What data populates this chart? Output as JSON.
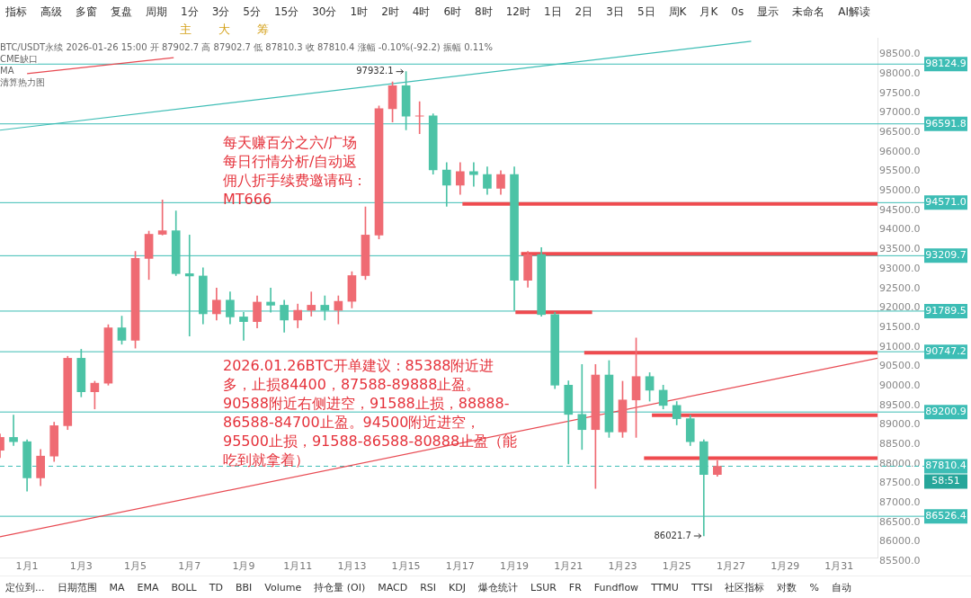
{
  "chart_data": {
    "type": "candlestick",
    "title": "BTC/USDT永续",
    "subtitle": "2026-01-26 15:00 开 87902.7 高 87902.7 低 87810.3 收 87810.4 涨幅 -0.10%(-92.2) 振幅 0.11%",
    "x": [
      "2025-12-31T00:00",
      "2025-12-31T12:00",
      "2026-01-01T00:00",
      "2026-01-01T12:00",
      "2026-01-02T00:00",
      "2026-01-02T12:00",
      "2026-01-03T00:00",
      "2026-01-03T12:00",
      "2026-01-04T00:00",
      "2026-01-04T12:00",
      "2026-01-05T00:00",
      "2026-01-05T12:00",
      "2026-01-06T00:00",
      "2026-01-06T12:00",
      "2026-01-07T00:00",
      "2026-01-07T12:00",
      "2026-01-08T00:00",
      "2026-01-08T12:00",
      "2026-01-09T00:00",
      "2026-01-09T12:00",
      "2026-01-10T00:00",
      "2026-01-10T12:00",
      "2026-01-11T00:00",
      "2026-01-11T12:00",
      "2026-01-12T00:00",
      "2026-01-12T12:00",
      "2026-01-13T00:00",
      "2026-01-13T12:00",
      "2026-01-14T00:00",
      "2026-01-14T12:00",
      "2026-01-15T00:00",
      "2026-01-15T12:00",
      "2026-01-16T00:00",
      "2026-01-16T12:00",
      "2026-01-17T00:00",
      "2026-01-17T12:00",
      "2026-01-18T00:00",
      "2026-01-18T12:00",
      "2026-01-19T00:00",
      "2026-01-19T12:00",
      "2026-01-20T00:00",
      "2026-01-20T12:00",
      "2026-01-21T00:00",
      "2026-01-21T12:00",
      "2026-01-22T00:00",
      "2026-01-22T12:00",
      "2026-01-23T00:00",
      "2026-01-23T12:00",
      "2026-01-24T00:00",
      "2026-01-24T12:00",
      "2026-01-25T00:00",
      "2026-01-25T12:00",
      "2026-01-26T00:00",
      "2026-01-26T12:00"
    ],
    "ohlc": [
      [
        88220,
        88640,
        88030,
        88550
      ],
      [
        88550,
        89120,
        88340,
        88440
      ],
      [
        88440,
        88490,
        87170,
        87510
      ],
      [
        87510,
        88240,
        87310,
        88070
      ],
      [
        88070,
        88940,
        87930,
        88850
      ],
      [
        88850,
        90630,
        88750,
        90580
      ],
      [
        90580,
        90810,
        89590,
        89720
      ],
      [
        89720,
        89990,
        89280,
        89940
      ],
      [
        89940,
        91440,
        89890,
        91360
      ],
      [
        91360,
        91660,
        90940,
        91040
      ],
      [
        91040,
        93320,
        90840,
        93140
      ],
      [
        93140,
        93840,
        92600,
        93760
      ],
      [
        93760,
        94640,
        93740,
        93850
      ],
      [
        93850,
        94360,
        92700,
        92750
      ],
      [
        92750,
        93740,
        91150,
        92690
      ],
      [
        92690,
        92900,
        91460,
        91720
      ],
      [
        91720,
        92380,
        91560,
        92070
      ],
      [
        92070,
        92280,
        91460,
        91640
      ],
      [
        91640,
        91760,
        91040,
        91520
      ],
      [
        91520,
        92180,
        91360,
        92020
      ],
      [
        92020,
        92380,
        91760,
        91940
      ],
      [
        91940,
        92070,
        91250,
        91560
      ],
      [
        91560,
        91970,
        91360,
        91810
      ],
      [
        91810,
        92280,
        91660,
        91940
      ],
      [
        91940,
        92180,
        91560,
        91810
      ],
      [
        91810,
        92180,
        91460,
        92040
      ],
      [
        92040,
        92800,
        91870,
        92700
      ],
      [
        92700,
        94460,
        92600,
        93740
      ],
      [
        93740,
        97050,
        93640,
        96980
      ],
      [
        96980,
        97670,
        96640,
        97570
      ],
      [
        97570,
        97932.1,
        96440,
        96790
      ],
      [
        96790,
        97160,
        96340,
        96800
      ],
      [
        96800,
        96850,
        95300,
        95410
      ],
      [
        95410,
        95600,
        94480,
        95020
      ],
      [
        95020,
        95600,
        94780,
        95370
      ],
      [
        95370,
        95600,
        94990,
        95290
      ],
      [
        95290,
        95490,
        94780,
        94940
      ],
      [
        94940,
        95390,
        94780,
        95290
      ],
      [
        95290,
        95490,
        91810,
        92580
      ],
      [
        92580,
        93320,
        92400,
        93240
      ],
      [
        93240,
        93420,
        91660,
        91700
      ],
      [
        91700,
        91760,
        89800,
        89890
      ],
      [
        89890,
        90000,
        87870,
        89140
      ],
      [
        89140,
        90420,
        88240,
        88750
      ],
      [
        88750,
        90420,
        87240,
        90150
      ],
      [
        90150,
        90520,
        88550,
        88690
      ],
      [
        88690,
        89990,
        88550,
        89510
      ],
      [
        89510,
        91100,
        88550,
        90110
      ],
      [
        90110,
        90210,
        89480,
        89760
      ],
      [
        89760,
        89890,
        89280,
        89370
      ],
      [
        89370,
        89470,
        88870,
        89030
      ],
      [
        89030,
        89120,
        88340,
        88440
      ],
      [
        88440,
        88490,
        86021.7,
        87600
      ],
      [
        87600,
        87950,
        87550,
        87810.4
      ]
    ],
    "colors": [
      "#ef6b73",
      "#4cc3a6",
      "#4cc3a6",
      "#ef6b73",
      "#ef6b73",
      "#ef6b73",
      "#4cc3a6",
      "#ef6b73",
      "#ef6b73",
      "#4cc3a6",
      "#ef6b73",
      "#ef6b73",
      "#ef6b73",
      "#4cc3a6",
      "#4cc3a6",
      "#4cc3a6",
      "#ef6b73",
      "#4cc3a6",
      "#4cc3a6",
      "#ef6b73",
      "#4cc3a6",
      "#4cc3a6",
      "#ef6b73",
      "#ef6b73",
      "#4cc3a6",
      "#ef6b73",
      "#ef6b73",
      "#ef6b73",
      "#ef6b73",
      "#ef6b73",
      "#4cc3a6",
      "#ef6b73",
      "#4cc3a6",
      "#4cc3a6",
      "#ef6b73",
      "#4cc3a6",
      "#4cc3a6",
      "#ef6b73",
      "#4cc3a6",
      "#ef6b73",
      "#4cc3a6",
      "#4cc3a6",
      "#4cc3a6",
      "#4cc3a6",
      "#ef6b73",
      "#4cc3a6",
      "#ef6b73",
      "#ef6b73",
      "#4cc3a6",
      "#4cc3a6",
      "#4cc3a6",
      "#4cc3a6",
      "#4cc3a6",
      "#ef6b73"
    ],
    "series": [
      {
        "type": "line",
        "color": "#3dbdb5",
        "x": [
          "2025-12-31T00:00",
          "2026-01-27T18:00"
        ],
        "values": [
          96430,
          98710
        ]
      },
      {
        "type": "line",
        "color": "#e84a52",
        "x": [
          "2026-01-01T00:00",
          "2026-01-06T10:00"
        ],
        "values": [
          97880,
          98290
        ]
      },
      {
        "type": "line",
        "color": "#e84a52",
        "x": [
          "2025-12-31T00:00",
          "2026-02-01T10:00"
        ],
        "values": [
          86000,
          90580
        ]
      },
      {
        "type": "line",
        "color": "#ef4b4f",
        "x": [
          "2026-01-17T02:00",
          "2026-02-01T10:00"
        ],
        "values": [
          94540,
          94540
        ]
      },
      {
        "type": "line",
        "color": "#ef4b4f",
        "x": [
          "2026-01-19T06:00",
          "2026-02-01T10:00"
        ],
        "values": [
          93260,
          93260
        ]
      },
      {
        "type": "line",
        "color": "#ef4b4f",
        "x": [
          "2026-01-19T01:00",
          "2026-01-21T21:00"
        ],
        "values": [
          91760,
          91760
        ]
      },
      {
        "type": "line",
        "color": "#ef4b4f",
        "x": [
          "2026-01-21T14:00",
          "2026-02-01T10:00"
        ],
        "values": [
          90720,
          90720
        ]
      },
      {
        "type": "line",
        "color": "#ef4b4f",
        "x": [
          "2026-01-24T02:00",
          "2026-02-01T10:00"
        ],
        "values": [
          89120,
          89120
        ]
      },
      {
        "type": "line",
        "color": "#ef4b4f",
        "x": [
          "2026-01-23T19:00",
          "2026-02-01T10:00"
        ],
        "values": [
          88020,
          88020
        ]
      }
    ],
    "ref_lines": [
      {
        "axis": "y",
        "value": 98124.9,
        "label": "98124.9",
        "color": "#3dbdb5"
      },
      {
        "axis": "y",
        "value": 96591.8,
        "label": "96591.8",
        "color": "#3dbdb5"
      },
      {
        "axis": "y",
        "value": 94571.0,
        "label": "94571.0",
        "color": "#3dbdb5"
      },
      {
        "axis": "y",
        "value": 93209.7,
        "label": "93209.7",
        "color": "#3dbdb5"
      },
      {
        "axis": "y",
        "value": 91789.5,
        "label": "91789.5",
        "color": "#3dbdb5"
      },
      {
        "axis": "y",
        "value": 90747.2,
        "label": "90747.2",
        "color": "#3dbdb5"
      },
      {
        "axis": "y",
        "value": 89200.9,
        "label": "89200.9",
        "color": "#3dbdb5"
      },
      {
        "axis": "y",
        "value": 87810.4,
        "label": "87810.4",
        "color": "#3dbdb5",
        "line_style": "dashed"
      },
      {
        "axis": "y",
        "value": 86526.4,
        "label": "86526.4",
        "color": "#3dbdb5"
      }
    ],
    "xlim": [
      "2025-12-31T00:00",
      "2026-02-01T10:00"
    ],
    "xticks": [
      {
        "value": "2026-01-01",
        "label": "1月1"
      },
      {
        "value": "2026-01-03",
        "label": "1月3"
      },
      {
        "value": "2026-01-05",
        "label": "1月5"
      },
      {
        "value": "2026-01-07",
        "label": "1月7"
      },
      {
        "value": "2026-01-09",
        "label": "1月9"
      },
      {
        "value": "2026-01-11",
        "label": "1月11"
      },
      {
        "value": "2026-01-13",
        "label": "1月13"
      },
      {
        "value": "2026-01-15",
        "label": "1月15"
      },
      {
        "value": "2026-01-17",
        "label": "1月17"
      },
      {
        "value": "2026-01-19",
        "label": "1月19"
      },
      {
        "value": "2026-01-21",
        "label": "1月21"
      },
      {
        "value": "2026-01-23",
        "label": "1月23"
      },
      {
        "value": "2026-01-25",
        "label": "1月25"
      },
      {
        "value": "2026-01-27",
        "label": "1月27"
      },
      {
        "value": "2026-01-29",
        "label": "1月29"
      },
      {
        "value": "2026-01-31",
        "label": "1月31"
      }
    ],
    "ylim": [
      85450,
      98800
    ],
    "yticks": [
      {
        "value": 85500,
        "label": "85500.0"
      },
      {
        "value": 86000,
        "label": "86000.0"
      },
      {
        "value": 86500,
        "label": "86500.0"
      },
      {
        "value": 87000,
        "label": "87000.0"
      },
      {
        "value": 87500,
        "label": "87500.0"
      },
      {
        "value": 88000,
        "label": "88000.0"
      },
      {
        "value": 88500,
        "label": "88500.0"
      },
      {
        "value": 89000,
        "label": "89000.0"
      },
      {
        "value": 89500,
        "label": "89500.0"
      },
      {
        "value": 90000,
        "label": "90000.0"
      },
      {
        "value": 90500,
        "label": "90500.0"
      },
      {
        "value": 91000,
        "label": "91000.0"
      },
      {
        "value": 91500,
        "label": "91500.0"
      },
      {
        "value": 92000,
        "label": "92000.0"
      },
      {
        "value": 92500,
        "label": "92500.0"
      },
      {
        "value": 93000,
        "label": "93000.0"
      },
      {
        "value": 93500,
        "label": "93500.0"
      },
      {
        "value": 94000,
        "label": "94000.0"
      },
      {
        "value": 94500,
        "label": "94500.0"
      },
      {
        "value": 95000,
        "label": "95000.0"
      },
      {
        "value": 95500,
        "label": "95500.0"
      },
      {
        "value": 96000,
        "label": "96000.0"
      },
      {
        "value": 96500,
        "label": "96500.0"
      },
      {
        "value": 97000,
        "label": "97000.0"
      },
      {
        "value": 97500,
        "label": "97500.0"
      },
      {
        "value": 98000,
        "label": "98000.0"
      },
      {
        "value": 98500,
        "label": "98500.0"
      }
    ],
    "annotations": [
      "每天赚百分之六/广场每日行情分析/自动返佣八折手续费邀请码：MT666",
      "2026.01.26BTC开单建议：85388附近进多，止损84400，87588-89888止盈。90588附近右侧进空，91588止损，88888-86588-84700止盈。94500附近进空，95500止损，91588-86588-80888止盈（能吃到就拿着）",
      "58:51",
      "CME缺口",
      "MA",
      "清算热力图",
      "指标",
      "高级",
      "多窗",
      "复盘",
      "周期",
      "1分",
      "3分",
      "5分",
      "15分",
      "30分",
      "1时",
      "2时",
      "4时",
      "6时",
      "8时",
      "12时",
      "1日",
      "2日",
      "3日",
      "5日",
      "周K",
      "月K",
      "0s",
      "显示",
      "未命名",
      "AI解读",
      "主",
      "大",
      "筹",
      "定位到...",
      "日期范围",
      "MA",
      "EMA",
      "BOLL",
      "TD",
      "BBI",
      "Volume",
      "持仓量 (OI)",
      "MACD",
      "RSI",
      "KDJ",
      "爆仓统计",
      "LSUR",
      "FR",
      "Fundflow",
      "TTMU",
      "TTSI",
      "社区指标",
      "对数",
      "%",
      "自动",
      {
        "text": "97932.1",
        "x": "2026-01-15T00:00",
        "y": 97932.1
      },
      {
        "text": "86021.7",
        "x": "2026-01-26T00:00",
        "y": 86021.7
      }
    ]
  }
}
